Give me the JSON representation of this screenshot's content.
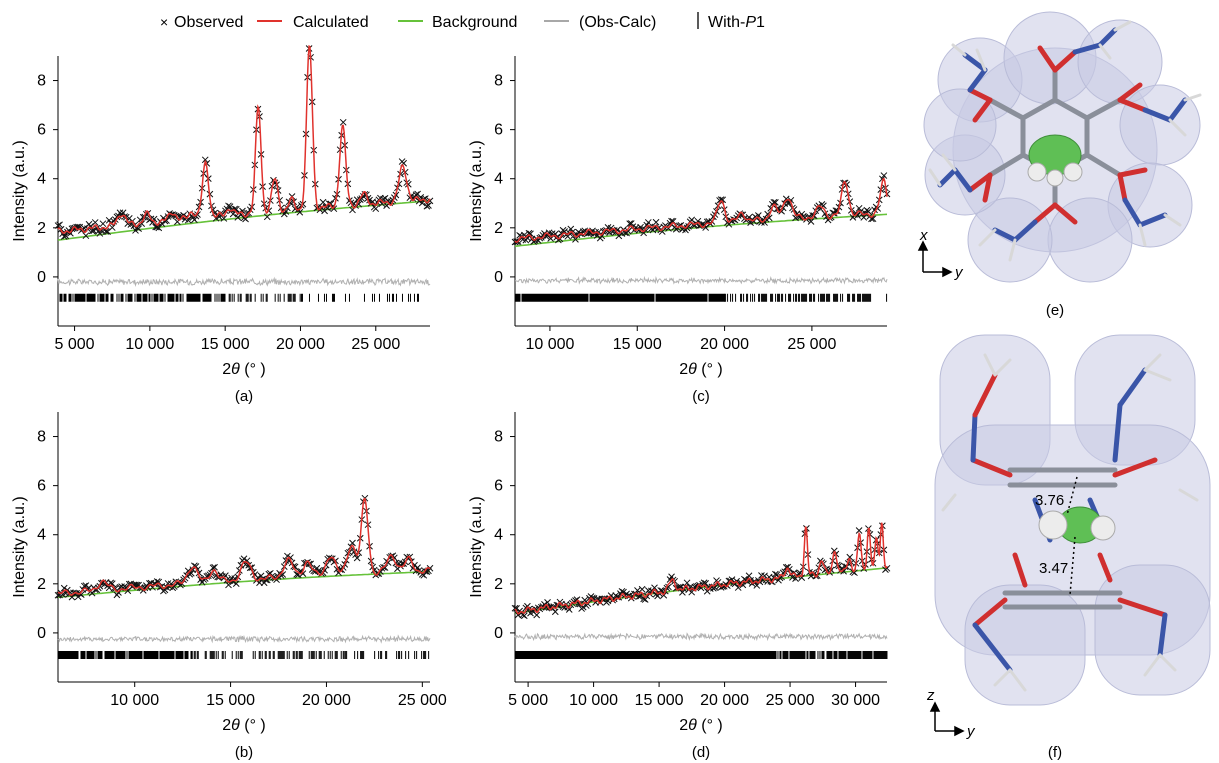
{
  "legend": {
    "observed": "Observed",
    "calculated": "Calculated",
    "background": "Background",
    "difference": "(Obs-Calc)",
    "reflections_prefix": "With-",
    "reflections_italic": "P",
    "reflections_suffix": "1"
  },
  "colors": {
    "observed": "#111111",
    "calculated": "#e0322d",
    "background": "#66c23a",
    "difference": "#b0b0b0",
    "ticks": "#000000"
  },
  "chart_data": [
    {
      "panel": "(a)",
      "type": "line",
      "xlabel_theta": "θ",
      "xlabel_prefix": "2",
      "xlabel_suffix": " (° )",
      "ylabel": "Intensity (a.u.)",
      "xlim": [
        3900,
        28600
      ],
      "ylim": [
        -2.0,
        9.0
      ],
      "xticks": [
        5000,
        10000,
        15000,
        20000,
        25000
      ],
      "xtick_labels": [
        "5 000",
        "10 000",
        "15 000",
        "20 000",
        "25 000"
      ],
      "yticks": [
        0,
        2,
        4,
        6,
        8
      ],
      "background": [
        [
          3900,
          1.5
        ],
        [
          28600,
          3.1
        ]
      ],
      "baseline": 1.85,
      "noise_amp": 0.18,
      "diff_offset": -0.2,
      "reflection_y": -0.85,
      "peaks": [
        [
          8100,
          0.5,
          250
        ],
        [
          9800,
          0.35,
          220
        ],
        [
          11500,
          0.35,
          220
        ],
        [
          12800,
          0.3,
          200
        ],
        [
          13700,
          2.2,
          210
        ],
        [
          15300,
          0.3,
          200
        ],
        [
          17200,
          4.3,
          180
        ],
        [
          18300,
          1.3,
          200
        ],
        [
          19400,
          0.4,
          180
        ],
        [
          20600,
          6.6,
          190
        ],
        [
          22800,
          3.2,
          200
        ],
        [
          24200,
          0.4,
          220
        ],
        [
          26800,
          1.4,
          260
        ]
      ],
      "reflection_ranges": [
        [
          3900,
          15000,
          0.72
        ],
        [
          15000,
          20000,
          0.35
        ],
        [
          20000,
          28600,
          0.15
        ]
      ]
    },
    {
      "panel": "(b)",
      "type": "line",
      "xlabel_theta": "θ",
      "xlabel_prefix": "2",
      "xlabel_suffix": " (° )",
      "ylabel": "Intensity (a.u.)",
      "xlim": [
        6000,
        25400
      ],
      "ylim": [
        -2.0,
        9.0
      ],
      "xticks": [
        10000,
        15000,
        20000,
        25000
      ],
      "xtick_labels": [
        "10 000",
        "15 000",
        "20 000",
        "25 000"
      ],
      "yticks": [
        0,
        2,
        4,
        6,
        8
      ],
      "background": [
        [
          6000,
          1.45
        ],
        [
          25400,
          2.5
        ]
      ],
      "baseline": 1.6,
      "noise_amp": 0.15,
      "diff_offset": -0.25,
      "reflection_y": -0.9,
      "peaks": [
        [
          8300,
          0.35,
          250
        ],
        [
          13000,
          0.7,
          250
        ],
        [
          14100,
          0.5,
          220
        ],
        [
          15800,
          0.7,
          260
        ],
        [
          18000,
          0.7,
          250
        ],
        [
          19000,
          0.6,
          220
        ],
        [
          20200,
          0.8,
          230
        ],
        [
          21300,
          1.2,
          230
        ],
        [
          22000,
          3.0,
          180
        ],
        [
          23400,
          0.7,
          240
        ],
        [
          24300,
          0.5,
          220
        ]
      ],
      "reflection_ranges": [
        [
          6000,
          13000,
          0.92
        ],
        [
          13000,
          21000,
          0.45
        ],
        [
          21000,
          25400,
          0.25
        ]
      ]
    },
    {
      "panel": "(c)",
      "type": "line",
      "xlabel_theta": "θ",
      "xlabel_prefix": "2",
      "xlabel_suffix": " (° )",
      "ylabel": "Intensity (a.u.)",
      "xlim": [
        8000,
        29300
      ],
      "ylim": [
        -2.0,
        9.0
      ],
      "xticks": [
        10000,
        15000,
        20000,
        25000
      ],
      "xtick_labels": [
        "10 000",
        "15 000",
        "20 000",
        "25 000"
      ],
      "yticks": [
        0,
        2,
        4,
        6,
        8
      ],
      "background": [
        [
          8000,
          1.25
        ],
        [
          29300,
          2.55
        ]
      ],
      "baseline": 1.55,
      "noise_amp": 0.14,
      "diff_offset": -0.15,
      "reflection_y": -0.85,
      "peaks": [
        [
          19800,
          0.95,
          200
        ],
        [
          21000,
          0.35,
          200
        ],
        [
          22800,
          0.5,
          220
        ],
        [
          23600,
          0.9,
          230
        ],
        [
          25500,
          0.4,
          220
        ],
        [
          26900,
          1.4,
          190
        ],
        [
          29100,
          1.3,
          180
        ]
      ],
      "reflection_ranges": [
        [
          8000,
          20000,
          0.98
        ],
        [
          20000,
          29300,
          0.55
        ]
      ]
    },
    {
      "panel": "(d)",
      "type": "line",
      "xlabel_theta": "θ",
      "xlabel_prefix": "2",
      "xlabel_suffix": " (° )",
      "ylabel": "Intensity (a.u.)",
      "xlim": [
        4000,
        32400
      ],
      "ylim": [
        -2.0,
        9.0
      ],
      "xticks": [
        5000,
        10000,
        15000,
        20000,
        25000,
        30000
      ],
      "xtick_labels": [
        "5 000",
        "10 000",
        "15 000",
        "20 000",
        "25 000",
        "30 000"
      ],
      "yticks": [
        0,
        2,
        4,
        6,
        8
      ],
      "background": [
        [
          4000,
          0.8
        ],
        [
          32400,
          2.65
        ]
      ],
      "baseline": 0.85,
      "noise_amp": 0.15,
      "diff_offset": -0.15,
      "reflection_y": -0.9,
      "peaks": [
        [
          16000,
          0.4,
          250
        ],
        [
          24800,
          0.4,
          200
        ],
        [
          26200,
          2.0,
          120
        ],
        [
          27400,
          0.6,
          150
        ],
        [
          28400,
          1.0,
          140
        ],
        [
          29500,
          0.6,
          140
        ],
        [
          30300,
          1.5,
          130
        ],
        [
          31000,
          1.7,
          120
        ],
        [
          31600,
          1.2,
          120
        ],
        [
          32000,
          1.9,
          110
        ]
      ],
      "reflection_ranges": [
        [
          4000,
          24000,
          1.0
        ],
        [
          24000,
          32400,
          0.8
        ]
      ]
    }
  ],
  "panel_e": {
    "caption": "(e)",
    "axis_x": "x",
    "axis_y": "y"
  },
  "panel_f": {
    "caption": "(f)",
    "axis_z": "z",
    "axis_y": "y",
    "dist1": "3.76",
    "dist2": "3.47"
  }
}
